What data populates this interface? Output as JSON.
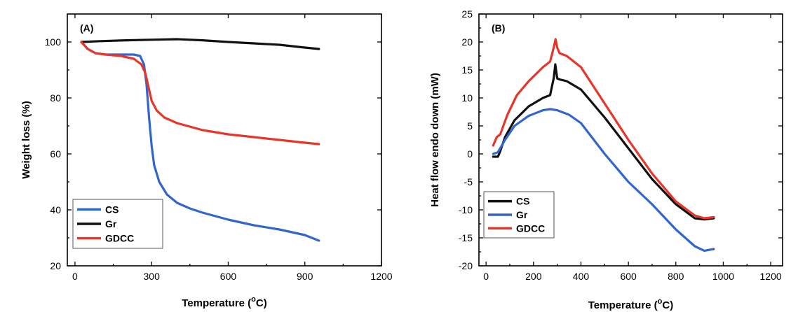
{
  "chart_data": [
    {
      "type": "line",
      "panel_label": "(A)",
      "xlabel_main": "Temperature (",
      "xlabel_sup": "o",
      "xlabel_end": "C)",
      "ylabel": "Weight loss (%)",
      "xlim": [
        -30,
        1200
      ],
      "ylim": [
        20,
        110
      ],
      "xticks": [
        0,
        300,
        600,
        900,
        1200
      ],
      "yticks": [
        20,
        40,
        60,
        80,
        100
      ],
      "legend_position": "bottom-left",
      "series": [
        {
          "name": "CS",
          "color": "#3366cc",
          "x": [
            25,
            50,
            80,
            120,
            180,
            230,
            255,
            270,
            280,
            290,
            300,
            310,
            330,
            360,
            400,
            450,
            500,
            600,
            700,
            800,
            900,
            955
          ],
          "y": [
            100,
            97.5,
            96,
            95.5,
            95.5,
            95.5,
            95,
            92,
            85,
            73,
            63,
            56,
            50,
            45.5,
            42.5,
            40.5,
            39,
            36.5,
            34.5,
            33,
            31,
            29
          ]
        },
        {
          "name": "Gr",
          "color": "#111111",
          "x": [
            25,
            100,
            200,
            300,
            400,
            500,
            600,
            700,
            800,
            900,
            955
          ],
          "y": [
            100,
            100.3,
            100.6,
            100.8,
            101,
            100.6,
            100,
            99.5,
            99,
            98,
            97.5
          ]
        },
        {
          "name": "GDCC",
          "color": "#e8352a",
          "x": [
            25,
            50,
            80,
            120,
            180,
            230,
            260,
            275,
            290,
            300,
            320,
            350,
            400,
            500,
            600,
            700,
            800,
            900,
            955
          ],
          "y": [
            100,
            97.5,
            96,
            95.5,
            95,
            94,
            92,
            89,
            83,
            79,
            75.5,
            73,
            71,
            68.5,
            67,
            66,
            65,
            64,
            63.5
          ]
        }
      ]
    },
    {
      "type": "line",
      "panel_label": "(B)",
      "xlabel_main": "Temperature (",
      "xlabel_sup": "o",
      "xlabel_end": "C)",
      "ylabel": "Heat flow endo down (mW)",
      "xlim": [
        -30,
        1250
      ],
      "ylim": [
        -20,
        25
      ],
      "xticks": [
        0,
        200,
        400,
        600,
        800,
        1000,
        1200
      ],
      "yticks": [
        -20,
        -15,
        -10,
        -5,
        0,
        5,
        10,
        15,
        20,
        25
      ],
      "legend_position": "bottom-left",
      "series": [
        {
          "name": "CS",
          "color": "#111111",
          "x": [
            30,
            50,
            60,
            80,
            120,
            180,
            240,
            270,
            285,
            292,
            300,
            310,
            340,
            400,
            500,
            600,
            700,
            800,
            880,
            920,
            960
          ],
          "y": [
            -0.5,
            -0.5,
            0.5,
            3,
            6,
            8.5,
            10,
            10.5,
            13.5,
            16,
            13.5,
            13.3,
            13,
            11.5,
            6.5,
            1,
            -4.5,
            -9,
            -11.5,
            -11.7,
            -11.5
          ]
        },
        {
          "name": "Gr",
          "color": "#3366cc",
          "x": [
            30,
            50,
            80,
            120,
            180,
            240,
            270,
            300,
            350,
            400,
            500,
            600,
            700,
            800,
            880,
            920,
            960
          ],
          "y": [
            0,
            0.3,
            2.5,
            5,
            6.8,
            7.8,
            8,
            7.8,
            7,
            5.5,
            0,
            -5,
            -9,
            -13.5,
            -16.5,
            -17.3,
            -17
          ]
        },
        {
          "name": "GDCC",
          "color": "#e8352a",
          "x": [
            30,
            45,
            60,
            90,
            130,
            180,
            240,
            270,
            285,
            293,
            300,
            310,
            340,
            400,
            500,
            600,
            700,
            800,
            880,
            920,
            960
          ],
          "y": [
            1.5,
            3,
            3.5,
            7,
            10.5,
            13,
            15.5,
            16.5,
            19,
            20.5,
            19,
            18,
            17.5,
            15.5,
            9,
            2.5,
            -3.5,
            -8.5,
            -11,
            -11.5,
            -11.3
          ]
        }
      ]
    }
  ]
}
